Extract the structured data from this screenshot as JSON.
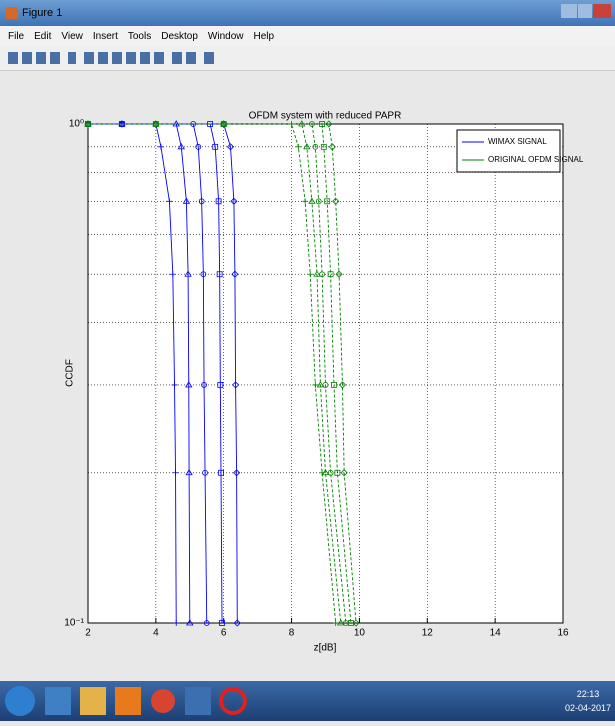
{
  "window": {
    "title": "Figure 1",
    "menu": [
      "File",
      "Edit",
      "View",
      "Insert",
      "Tools",
      "Desktop",
      "Window",
      "Help"
    ]
  },
  "chart_data": {
    "type": "line",
    "title": "OFDM system with reduced PAPR",
    "x_label": "z[dB]",
    "y_label": "CCDF",
    "log_y": true,
    "grid": true,
    "legend": "top-right",
    "xlim": [
      2,
      16
    ],
    "xticks": [
      2,
      4,
      6,
      8,
      10,
      12,
      14,
      16
    ],
    "ylim": [
      0.1,
      1
    ],
    "yticks": [
      {
        "value": 1,
        "label": "10⁰"
      },
      {
        "value": 0.1,
        "label": "10⁻¹"
      }
    ],
    "minor_yticks": [
      0.2,
      0.3,
      0.4,
      0.5,
      0.6,
      0.7,
      0.8,
      0.9
    ],
    "series": [
      {
        "name": "WIMAX SIGNAL",
        "color": "#0000ff",
        "dash": false,
        "curves": [
          {
            "marker": "+",
            "x": [
              2,
              3,
              4.0,
              4.15,
              4.4,
              4.5,
              4.55,
              4.58,
              4.6
            ],
            "values": [
              1,
              1,
              1,
              0.9,
              0.7,
              0.5,
              0.3,
              0.2,
              0.1
            ]
          },
          {
            "marker": "^",
            "x": [
              2,
              3,
              4.6,
              4.75,
              4.9,
              4.95,
              4.97,
              4.98,
              5.0
            ],
            "values": [
              1,
              1,
              1,
              0.9,
              0.7,
              0.5,
              0.3,
              0.2,
              0.1
            ]
          },
          {
            "marker": "o",
            "x": [
              2,
              3,
              5.1,
              5.25,
              5.35,
              5.4,
              5.42,
              5.45,
              5.5
            ],
            "values": [
              1,
              1,
              1,
              0.9,
              0.7,
              0.5,
              0.3,
              0.2,
              0.1
            ]
          },
          {
            "marker": "s",
            "x": [
              2,
              3,
              5.6,
              5.75,
              5.85,
              5.88,
              5.9,
              5.92,
              5.95
            ],
            "values": [
              1,
              1,
              1,
              0.9,
              0.7,
              0.5,
              0.3,
              0.2,
              0.1
            ]
          },
          {
            "marker": "d",
            "x": [
              2,
              3,
              6.0,
              6.2,
              6.3,
              6.33,
              6.35,
              6.38,
              6.4
            ],
            "values": [
              1,
              1,
              1,
              0.9,
              0.7,
              0.5,
              0.3,
              0.2,
              0.1
            ]
          }
        ]
      },
      {
        "name": "ORIGINAL OFDM SIGNAL",
        "color": "#008000",
        "dash": true,
        "curves": [
          {
            "marker": "+",
            "x": [
              2,
              4,
              6,
              8.0,
              8.2,
              8.4,
              8.55,
              8.7,
              8.9,
              9.3
            ],
            "values": [
              1,
              1,
              1,
              1,
              0.9,
              0.7,
              0.5,
              0.3,
              0.2,
              0.1
            ]
          },
          {
            "marker": "^",
            "x": [
              2,
              4,
              6,
              8.3,
              8.45,
              8.6,
              8.75,
              8.85,
              9.0,
              9.45
            ],
            "values": [
              1,
              1,
              1,
              1,
              0.9,
              0.7,
              0.5,
              0.3,
              0.2,
              0.1
            ]
          },
          {
            "marker": "o",
            "x": [
              2,
              4,
              6,
              8.6,
              8.7,
              8.8,
              8.9,
              9.0,
              9.15,
              9.6
            ],
            "values": [
              1,
              1,
              1,
              1,
              0.9,
              0.7,
              0.5,
              0.3,
              0.2,
              0.1
            ]
          },
          {
            "marker": "s",
            "x": [
              2,
              4,
              6,
              8.9,
              8.95,
              9.05,
              9.15,
              9.25,
              9.35,
              9.75
            ],
            "values": [
              1,
              1,
              1,
              1,
              0.9,
              0.7,
              0.5,
              0.3,
              0.2,
              0.1
            ]
          },
          {
            "marker": "d",
            "x": [
              2,
              4,
              6,
              9.1,
              9.2,
              9.3,
              9.4,
              9.5,
              9.55,
              9.9
            ],
            "values": [
              1,
              1,
              1,
              1,
              0.9,
              0.7,
              0.5,
              0.3,
              0.2,
              0.1
            ]
          }
        ]
      }
    ]
  },
  "taskbar": {
    "time": "22:13",
    "date": "02-04-2017"
  }
}
